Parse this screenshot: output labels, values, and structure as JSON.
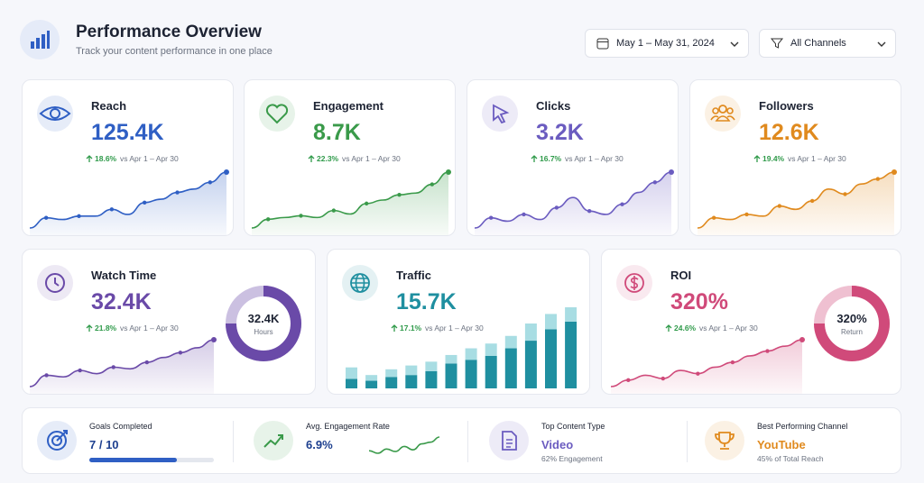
{
  "header": {
    "title": "Performance Overview",
    "subtitle": "Track your content performance in one place"
  },
  "filters": {
    "date": "May 1 – May 31, 2024",
    "channel": "All Channels"
  },
  "metrics": [
    {
      "label": "Reach",
      "value": "125.4K",
      "change": "18.6%",
      "comparison": "vs Apr 1 – Apr 30",
      "color": "#2f5fc4",
      "trend": [
        8,
        20,
        18,
        22,
        22,
        30,
        24,
        38,
        42,
        50,
        54,
        62,
        74
      ]
    },
    {
      "label": "Engagement",
      "value": "8.7K",
      "change": "22.3%",
      "comparison": "vs Apr 1 – Apr 30",
      "color": "#3a9a4a",
      "trend": [
        8,
        18,
        20,
        22,
        20,
        28,
        24,
        36,
        40,
        46,
        48,
        58,
        72
      ]
    },
    {
      "label": "Clicks",
      "value": "3.2K",
      "change": "16.7%",
      "comparison": "vs Apr 1 – Apr 30",
      "color": "#6b5cc0",
      "trend": [
        10,
        22,
        18,
        26,
        20,
        34,
        46,
        30,
        26,
        38,
        52,
        64,
        76
      ]
    },
    {
      "label": "Followers",
      "value": "12.6K",
      "change": "19.4%",
      "comparison": "vs Apr 1 – Apr 30",
      "color": "#e08a1e",
      "trend": [
        10,
        22,
        20,
        26,
        24,
        36,
        32,
        42,
        56,
        50,
        62,
        68,
        76
      ]
    }
  ],
  "watch_time": {
    "label": "Watch Time",
    "value": "32.4K",
    "change": "21.8%",
    "comparison": "vs Apr 1 – Apr 30",
    "color": "#6a4aa8",
    "trend": [
      10,
      24,
      22,
      30,
      26,
      34,
      32,
      40,
      46,
      52,
      58,
      68
    ],
    "donut_value": "32.4K",
    "donut_label": "Hours",
    "progress": 75
  },
  "traffic": {
    "label": "Traffic",
    "value": "15.7K",
    "change": "17.1%",
    "comparison": "vs Apr 1 – Apr 30",
    "color": "#1f8fa0",
    "light_color": "#a8dde3",
    "base": [
      10,
      8,
      12,
      14,
      18,
      26,
      30,
      34,
      42,
      50,
      62,
      70
    ],
    "top": [
      12,
      6,
      8,
      10,
      10,
      9,
      12,
      13,
      13,
      18,
      16,
      15
    ]
  },
  "roi": {
    "label": "ROI",
    "value": "320%",
    "change": "24.6%",
    "comparison": "vs Apr 1 – Apr 30",
    "color": "#d04a7a",
    "trend": [
      8,
      16,
      22,
      18,
      28,
      24,
      32,
      38,
      46,
      52,
      58,
      66
    ],
    "donut_value": "320%",
    "donut_label": "Return",
    "progress": 75
  },
  "summary": [
    {
      "label": "Goals Completed",
      "value": "7 / 10",
      "progress": 70,
      "color": "#2f5fc4"
    },
    {
      "label": "Avg. Engagement Rate",
      "value": "6.9%",
      "color": "#3a9a4a",
      "trend": [
        30,
        24,
        34,
        28,
        40,
        32,
        46,
        50,
        62
      ]
    },
    {
      "label": "Top Content Type",
      "value": "Video",
      "detail": "62% Engagement",
      "color": "#6b5cc0"
    },
    {
      "label": "Best Performing Channel",
      "value": "YouTube",
      "detail": "45% of Total Reach",
      "color": "#e08a1e"
    }
  ]
}
